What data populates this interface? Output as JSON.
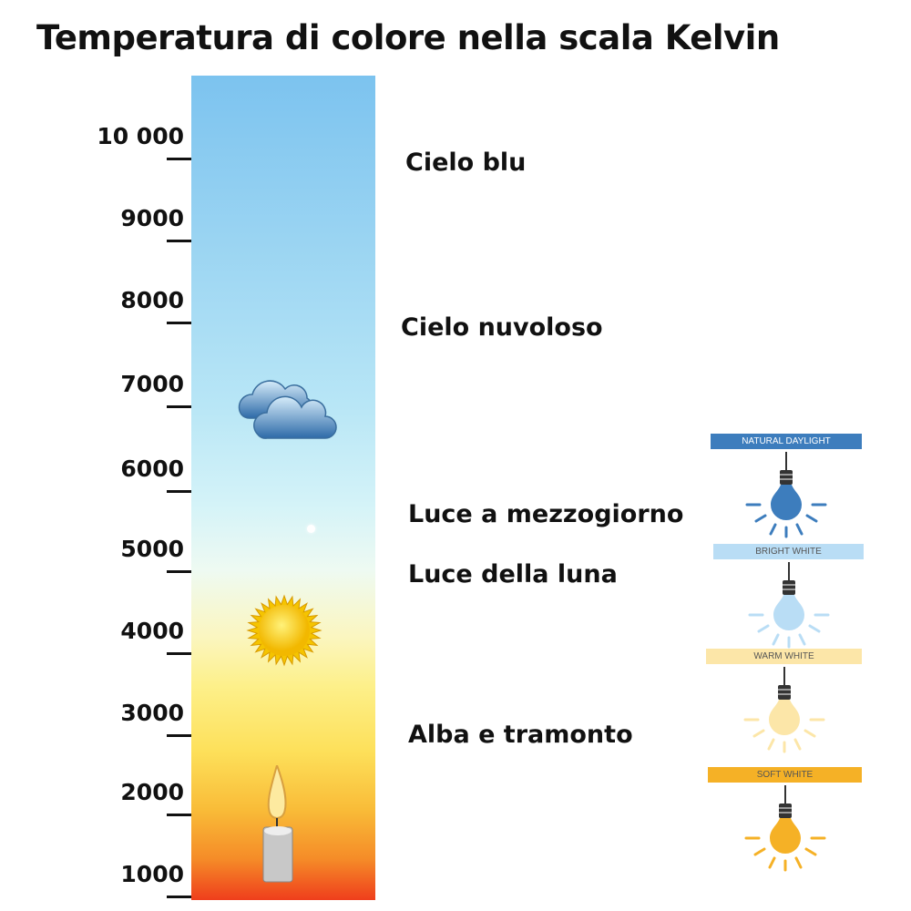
{
  "title": "Temperatura di colore nella scala Kelvin",
  "scale": {
    "ticks": [
      "10 000",
      "9000",
      "8000",
      "7000",
      "6000",
      "5000",
      "4000",
      "3000",
      "2000",
      "1000"
    ]
  },
  "categories": [
    {
      "label": "Cielo blu"
    },
    {
      "label": "Cielo nuvoloso"
    },
    {
      "label": "Luce a mezzogiorno"
    },
    {
      "label": "Luce della luna"
    },
    {
      "label": "Alba e tramonto"
    }
  ],
  "icons": [
    "cloud-icon",
    "sun-icon",
    "candle-icon"
  ],
  "bulbs": [
    {
      "label": "NATURAL DAYLIGHT",
      "color": "#3d7dbd",
      "text_color": "#ffffff"
    },
    {
      "label": "BRIGHT WHITE",
      "color": "#b9ddf5",
      "text_color": "#555555"
    },
    {
      "label": "WARM WHITE",
      "color": "#fce6a8",
      "text_color": "#555555"
    },
    {
      "label": "SOFT WHITE",
      "color": "#f5b126",
      "text_color": "#555555"
    }
  ]
}
